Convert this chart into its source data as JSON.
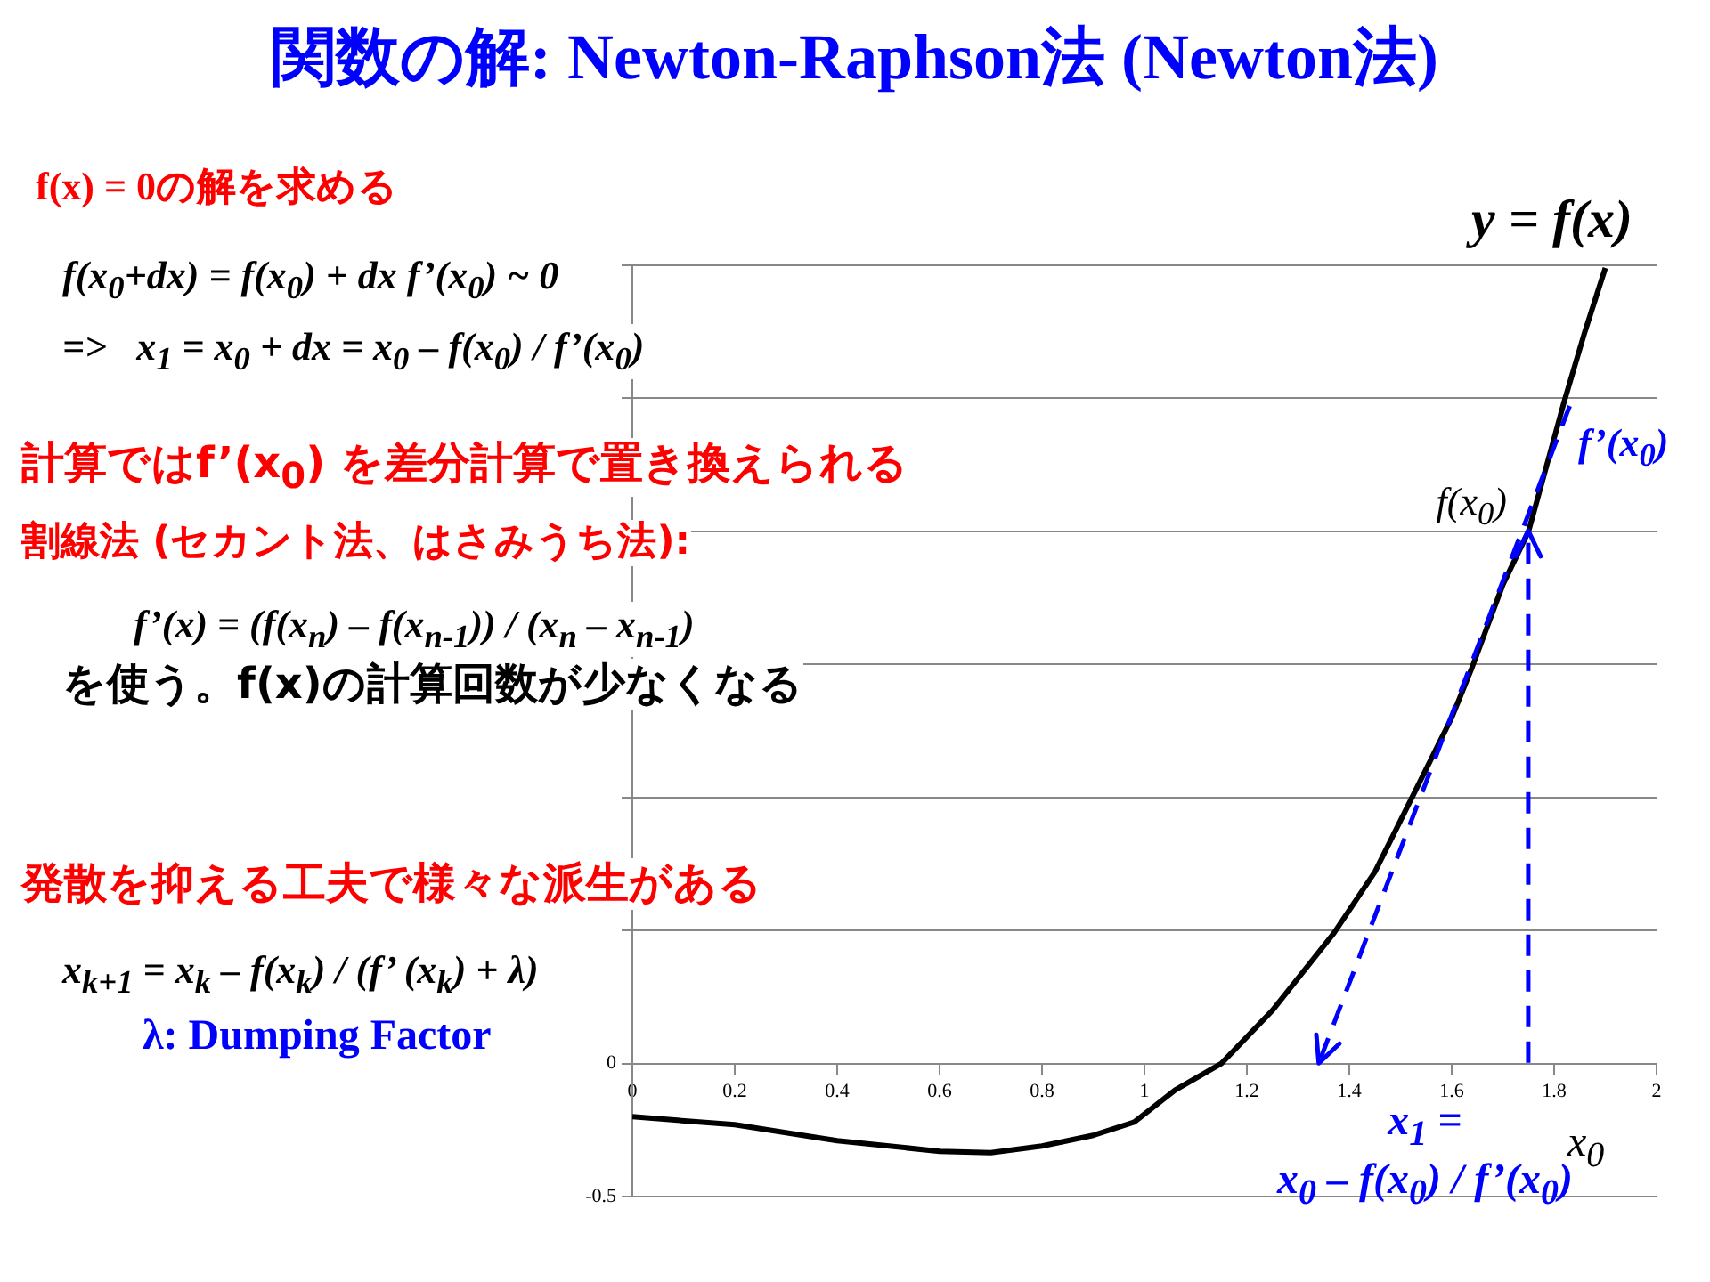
{
  "chart_data": {
    "type": "line",
    "title": "関数の解: Newton-Raphson法 (Newton法)",
    "xlim": [
      0,
      2
    ],
    "xticks": [
      0,
      0.2,
      0.4,
      0.6,
      0.8,
      1,
      1.2,
      1.4,
      1.6,
      1.8,
      2
    ],
    "ylim": [
      -0.5,
      3
    ],
    "yticks": [
      -0.5,
      0,
      {
        "value": 0.5,
        "label": null
      },
      {
        "value": 1,
        "label": null
      },
      {
        "value": 1.5,
        "label": null
      },
      {
        "value": 2,
        "label": null
      },
      {
        "value": 2.5,
        "label": null
      },
      {
        "value": 3,
        "label": null
      }
    ],
    "grid": "y",
    "legend": false,
    "marker": "none",
    "series": [
      {
        "color": "#000000",
        "line_style": "solid",
        "x": [
          0,
          0.2,
          0.4,
          0.6,
          0.7,
          0.8,
          0.9,
          0.98,
          1.06,
          1.15,
          1.25,
          1.37,
          1.45,
          1.52,
          1.6,
          1.64,
          1.7,
          1.75,
          1.82,
          1.86,
          1.9
        ],
        "values": [
          -0.2,
          -0.23,
          -0.29,
          -0.33,
          -0.335,
          -0.31,
          -0.27,
          -0.22,
          -0.1,
          0,
          0.2,
          0.49,
          0.72,
          0.99,
          1.3,
          1.49,
          1.8,
          2,
          2.49,
          2.75,
          2.99
        ]
      }
    ],
    "annotations": [
      "f(x) = 0の解を求める",
      "f(x$_{0}$+dx) = f(x$_{0}$) + dx f’(x$_{0}$) ~ 0",
      "=>   x$_{1}$ = x$_{0}$ + dx = x$_{0}$ – f(x$_{0}$) / f’(x$_{0}$)",
      "計算ではf’(x$_{0}$) を差分計算で置き換えられる",
      "割線法 (セカント法、はさみうち法):",
      "f’(x) = (f(x$_{n}$) – f(x$_{n-1}$)) / (x$_{n}$ – x$_{n-1}$)",
      "を使う。f(x)の計算回数が少なくなる",
      "発散を抑える工夫で様々な派生がある",
      "x$_{k+1}$ = x$_{k}$ – f(x$_{k}$) / (f’ (x$_{k}$) + λ)",
      "λ: Dumping Factor",
      {
        "text": "y = f(x)",
        "x": 1.9,
        "y": 3
      },
      "f’(x$_{0}$)",
      {
        "text": "f(x$_{0}$)",
        "x": 1.75,
        "y": 2
      },
      "x$_{0}$",
      "x$_{1}$ =\nx$_{0}$ – f(x$_{0}$) / f’(x$_{0}$)"
    ]
  }
}
